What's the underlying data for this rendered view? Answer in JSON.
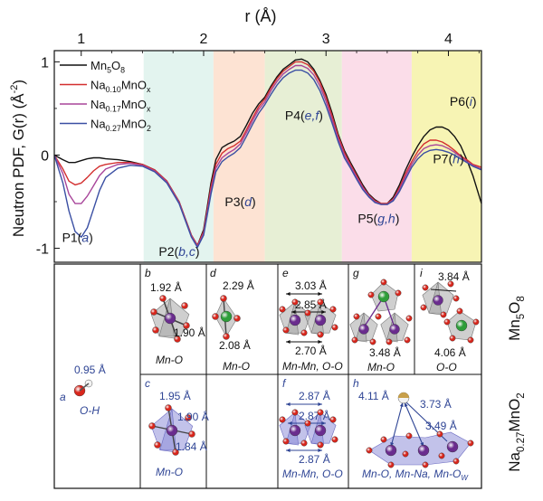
{
  "chart_data": {
    "type": "line",
    "title": "",
    "xlabel_main": "r (Å)",
    "ylabel_main": "Neutron PDF, G(r) (Å",
    "ylabel_exp": "-2",
    "ylabel_close": ")",
    "xlim": [
      0.78,
      4.27
    ],
    "ylim": [
      -1.15,
      1.12
    ],
    "xticks": [
      1,
      2,
      3,
      4
    ],
    "xtick_labels": [
      "1",
      "2",
      "3",
      "4"
    ],
    "yticks": [
      -1,
      0,
      1
    ],
    "ytick_labels": [
      "-1",
      "0",
      "1"
    ],
    "grid": false,
    "legend_position": "top-left",
    "bands": [
      {
        "x0": 1.51,
        "x1": 2.08,
        "color": "#e3f4ef"
      },
      {
        "x0": 2.08,
        "x1": 2.5,
        "color": "#fde3d3"
      },
      {
        "x0": 2.5,
        "x1": 3.13,
        "color": "#e7efd5"
      },
      {
        "x0": 3.13,
        "x1": 3.7,
        "color": "#fbdde9"
      },
      {
        "x0": 3.7,
        "x1": 4.27,
        "color": "#f7f4b4"
      }
    ],
    "band_labels": [
      {
        "pre": "P1(",
        "it": "a",
        "post": ")",
        "x": 0.97,
        "y": -0.93
      },
      {
        "pre": "P2(",
        "it": "b,c",
        "post": ")",
        "x": 1.8,
        "y": -1.08
      },
      {
        "pre": "P3(",
        "it": "d",
        "post": ")",
        "x": 2.3,
        "y": -0.55
      },
      {
        "pre": "P4(",
        "it": "e,f",
        "post": ")",
        "x": 2.82,
        "y": 0.38
      },
      {
        "pre": "P5(",
        "it": "g,h",
        "post": ")",
        "x": 3.43,
        "y": -0.73
      },
      {
        "pre": "P6(",
        "it": "i",
        "post": ")",
        "x": 4.12,
        "y": 0.53
      },
      {
        "pre": "P7(",
        "it": "h",
        "post": ")",
        "x": 4.0,
        "y": -0.09
      }
    ],
    "x": [
      0.78,
      0.85,
      0.9,
      0.95,
      1.0,
      1.05,
      1.1,
      1.15,
      1.2,
      1.3,
      1.4,
      1.5,
      1.6,
      1.7,
      1.8,
      1.85,
      1.9,
      1.95,
      2.0,
      2.03,
      2.06,
      2.1,
      2.15,
      2.2,
      2.25,
      2.3,
      2.35,
      2.4,
      2.45,
      2.5,
      2.55,
      2.6,
      2.65,
      2.7,
      2.75,
      2.8,
      2.85,
      2.9,
      2.95,
      3.0,
      3.05,
      3.1,
      3.15,
      3.2,
      3.25,
      3.3,
      3.35,
      3.4,
      3.45,
      3.5,
      3.55,
      3.6,
      3.65,
      3.7,
      3.75,
      3.8,
      3.85,
      3.9,
      3.95,
      4.0,
      4.05,
      4.1,
      4.15,
      4.2,
      4.27
    ],
    "series": [
      {
        "name": "Mn5O8",
        "color": "#111111",
        "values": [
          0.0,
          -0.05,
          -0.08,
          -0.08,
          -0.06,
          -0.04,
          -0.03,
          -0.03,
          -0.04,
          -0.05,
          -0.07,
          -0.1,
          -0.16,
          -0.28,
          -0.5,
          -0.68,
          -0.86,
          -0.97,
          -0.8,
          -0.55,
          -0.3,
          -0.05,
          0.08,
          0.12,
          0.15,
          0.2,
          0.32,
          0.45,
          0.55,
          0.62,
          0.74,
          0.84,
          0.92,
          0.97,
          1.02,
          1.03,
          1.0,
          0.92,
          0.8,
          0.65,
          0.45,
          0.22,
          0.05,
          -0.08,
          -0.2,
          -0.32,
          -0.42,
          -0.48,
          -0.52,
          -0.52,
          -0.45,
          -0.32,
          -0.16,
          -0.02,
          0.1,
          0.2,
          0.27,
          0.3,
          0.3,
          0.27,
          0.2,
          0.1,
          -0.05,
          -0.22,
          -0.52
        ]
      },
      {
        "name": "Na0.10MnOx",
        "color": "#d32f2f",
        "values": [
          0.0,
          -0.15,
          -0.28,
          -0.32,
          -0.3,
          -0.24,
          -0.17,
          -0.12,
          -0.1,
          -0.08,
          -0.08,
          -0.1,
          -0.16,
          -0.28,
          -0.5,
          -0.68,
          -0.86,
          -0.97,
          -0.82,
          -0.58,
          -0.34,
          -0.1,
          0.02,
          0.07,
          0.1,
          0.15,
          0.27,
          0.4,
          0.52,
          0.6,
          0.72,
          0.82,
          0.9,
          0.95,
          1.0,
          1.0,
          0.97,
          0.9,
          0.78,
          0.62,
          0.42,
          0.2,
          0.03,
          -0.1,
          -0.22,
          -0.34,
          -0.43,
          -0.49,
          -0.52,
          -0.52,
          -0.47,
          -0.35,
          -0.2,
          -0.07,
          0.04,
          0.12,
          0.16,
          0.16,
          0.14,
          0.1,
          0.05,
          -0.01,
          -0.05,
          -0.1,
          -0.13
        ]
      },
      {
        "name": "Na0.17MnOx",
        "color": "#a8459a",
        "values": [
          0.0,
          -0.2,
          -0.42,
          -0.52,
          -0.52,
          -0.44,
          -0.33,
          -0.22,
          -0.15,
          -0.1,
          -0.09,
          -0.11,
          -0.17,
          -0.29,
          -0.51,
          -0.69,
          -0.87,
          -0.98,
          -0.84,
          -0.61,
          -0.38,
          -0.14,
          -0.03,
          0.02,
          0.06,
          0.12,
          0.24,
          0.37,
          0.49,
          0.57,
          0.69,
          0.79,
          0.87,
          0.92,
          0.96,
          0.96,
          0.93,
          0.86,
          0.74,
          0.58,
          0.38,
          0.17,
          0.0,
          -0.12,
          -0.24,
          -0.35,
          -0.44,
          -0.5,
          -0.53,
          -0.53,
          -0.48,
          -0.37,
          -0.23,
          -0.1,
          0.0,
          0.07,
          0.1,
          0.11,
          0.1,
          0.07,
          0.03,
          -0.02,
          -0.07,
          -0.11,
          -0.15
        ]
      },
      {
        "name": "Na0.27MnO2",
        "color": "#3a4fa3",
        "values": [
          0.0,
          -0.3,
          -0.6,
          -0.82,
          -0.88,
          -0.78,
          -0.58,
          -0.38,
          -0.24,
          -0.14,
          -0.11,
          -0.12,
          -0.18,
          -0.3,
          -0.52,
          -0.7,
          -0.88,
          -0.99,
          -0.86,
          -0.64,
          -0.42,
          -0.18,
          -0.07,
          -0.02,
          0.02,
          0.08,
          0.2,
          0.33,
          0.45,
          0.54,
          0.65,
          0.75,
          0.83,
          0.88,
          0.91,
          0.91,
          0.88,
          0.81,
          0.69,
          0.53,
          0.34,
          0.14,
          -0.03,
          -0.14,
          -0.26,
          -0.37,
          -0.45,
          -0.51,
          -0.53,
          -0.53,
          -0.49,
          -0.39,
          -0.26,
          -0.13,
          -0.04,
          0.02,
          0.05,
          0.06,
          0.05,
          0.03,
          0.0,
          -0.04,
          -0.08,
          -0.12,
          -0.16
        ]
      }
    ],
    "legend": [
      {
        "base": "Mn",
        "sub1": "5",
        "mid": "O",
        "sub2": "8"
      },
      {
        "base": "Na",
        "sub1": "0.10",
        "mid": "MnO",
        "sub2": "x"
      },
      {
        "base": "Na",
        "sub1": "0.17",
        "mid": "MnO",
        "sub2": "x"
      },
      {
        "base": "Na",
        "sub1": "0.27",
        "mid": "MnO",
        "sub2": "2"
      }
    ]
  },
  "panels": {
    "a": {
      "letter": "a",
      "dist": "0.95 Å",
      "bond": "O-H"
    },
    "b": {
      "letter": "b",
      "d1": "1.92 Å",
      "d2": "1.90 Å",
      "bond": "Mn-O"
    },
    "c": {
      "letter": "c",
      "d1": "1.95 Å",
      "d2": "1.90 Å",
      "d3": "1.84 Å",
      "bond": "Mn-O"
    },
    "d": {
      "letter": "d",
      "d1": "2.29 Å",
      "d2": "2.08 Å",
      "bond": "Mn-O"
    },
    "e": {
      "letter": "e",
      "d1": "3.03 Å",
      "d2": "2.85 Å",
      "d3": "2.70 Å",
      "bond": "Mn-Mn, O-O"
    },
    "f": {
      "letter": "f",
      "d1": "2.87 Å",
      "d2": "2.87 Å",
      "d3": "2.87 Å",
      "bond": "Mn-Mn, O-O"
    },
    "g": {
      "letter": "g",
      "d1": "3.48 Å",
      "bond": "Mn-O"
    },
    "h": {
      "letter": "h",
      "d1": "4.11 Å",
      "d2": "3.73 Å",
      "d3": "3.49 Å",
      "bond_main": "Mn-O, Mn-Na, Mn-O",
      "bond_sub": "W"
    },
    "i": {
      "letter": "i",
      "d1": "3.84 Å",
      "d2": "4.06 Å",
      "bond": "O-O"
    }
  },
  "row_labels": {
    "top": {
      "base": "Mn",
      "sub1": "5",
      "mid": "O",
      "sub2": "8"
    },
    "bottom": {
      "base": "Na",
      "sub1": "0.27",
      "mid": "MnO",
      "sub2": "2"
    }
  },
  "colors": {
    "mn": "#6a2c8e",
    "o": "#d8261c",
    "na": "#2e9e3a",
    "h": "#f2f2f2",
    "poly_top": "#a8a8a8",
    "poly_bottom": "#8f8fd8",
    "text_blue": "#2f4595"
  }
}
